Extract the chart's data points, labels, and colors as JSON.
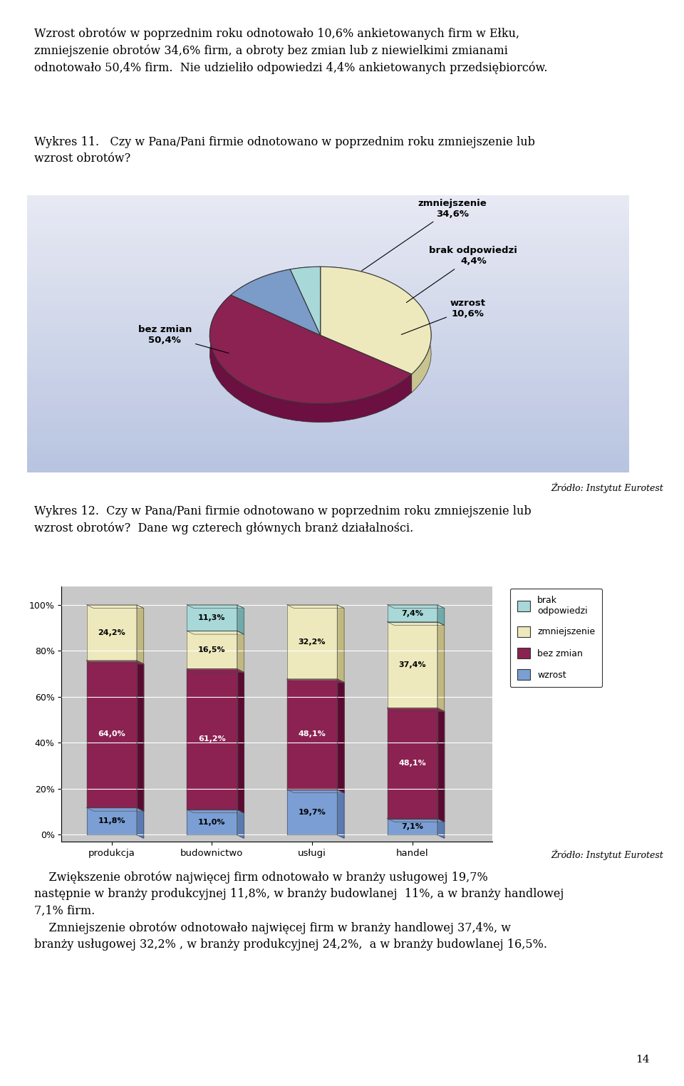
{
  "page_text_top": "Wzrost obrotów w poprzednim roku odnotowało 10,6% ankietowanych firm w Ełku,\nzmniejszenie obrotów 34,6% firm, a obroty bez zmian lub z niewielkimi zmianami\nodnotowało 50,4% firm.  Nie udzieliło odpowiedzi 4,4% ankietowanych przedsiębiorców.",
  "wykres11_label": "Wykres 11.   Czy w Pana/Pani firmie odnotowano w poprzednim roku zmniejszenie lub\nwzrost obrotów?",
  "pie_sizes": [
    34.6,
    50.4,
    10.6,
    4.4
  ],
  "pie_colors": [
    "#EDE9BC",
    "#8B2252",
    "#7B9BC8",
    "#A8D8D8"
  ],
  "pie_side_colors": [
    "#C8C490",
    "#6B1040",
    "#5A7BAA",
    "#80BCBC"
  ],
  "pie_bg_color_top": "#C8D0E8",
  "pie_bg_color_bottom": "#E8EAF0",
  "source_text": "Źródło: Instytut Eurotest",
  "wykres12_label": "Wykres 12.  Czy w Pana/Pani firmie odnotowano w poprzednim roku zmniejszenie lub\nwzrost obrotów?  Dane wg czterech głównych branż działalności.",
  "bar_categories": [
    "produkcja",
    "budownictwo",
    "usługi",
    "handel"
  ],
  "bar_wzrost": [
    11.8,
    11.0,
    19.7,
    7.1
  ],
  "bar_bez_zmian": [
    64.0,
    61.2,
    48.1,
    48.1
  ],
  "bar_zmniejszenie": [
    24.2,
    16.5,
    32.2,
    37.4
  ],
  "bar_brak": [
    0.0,
    11.3,
    0.0,
    7.4
  ],
  "bar_color_wzrost": "#7B9FD4",
  "bar_color_bez_zmian": "#8B2252",
  "bar_color_zmniejszenie": "#EDE9BC",
  "bar_color_brak": "#A8D8D8",
  "bar_bg_color": "#C8C8C8",
  "bottom_text_1": "    Zwiększenie obrotów najwięcej firm odnotowało w branży usługowej 19,7%\nnastępnie w branży produkcyjnej 11,8%, w branży budowlanej  11%, a w branży handlowej\n7,1% firm.",
  "bottom_text_2": "    Zmniejszenie obrotów odnotowało najwięcej firm w branży handlowej 37,4%, w\nbranży usługowej 32,2% , w branży produkcyjnej 24,2%,  a w branży budowlanej 16,5%.",
  "page_number": "14"
}
